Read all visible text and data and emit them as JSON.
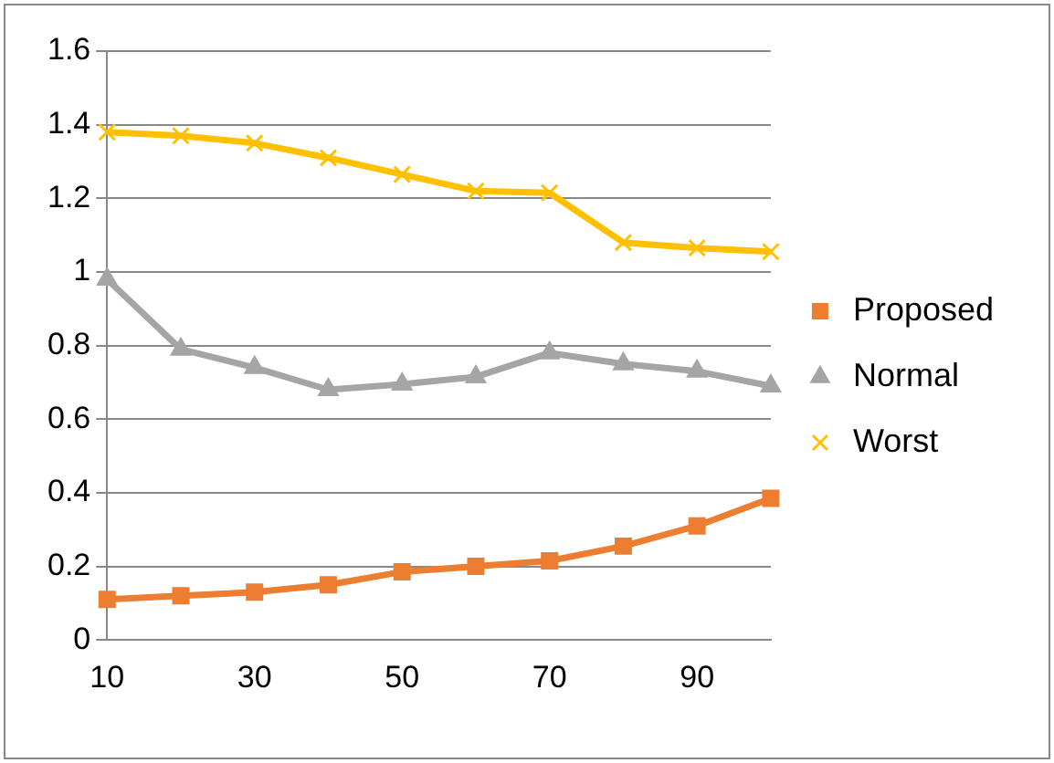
{
  "chart_data": {
    "type": "line",
    "categories": [
      "10",
      null,
      "30",
      null,
      "50",
      null,
      "70",
      null,
      "90",
      null
    ],
    "series": [
      {
        "name": "Proposed",
        "color": "#ed7d31",
        "marker": "square",
        "values": [
          0.11,
          0.12,
          0.13,
          0.15,
          0.185,
          0.2,
          0.215,
          0.255,
          0.31,
          0.385
        ]
      },
      {
        "name": "Normal",
        "color": "#a5a5a5",
        "marker": "triangle",
        "values": [
          0.98,
          0.79,
          0.74,
          0.68,
          0.695,
          0.715,
          0.78,
          0.75,
          0.73,
          0.69
        ]
      },
      {
        "name": "Worst",
        "color": "#ffc000",
        "marker": "cross",
        "values": [
          1.38,
          1.37,
          1.35,
          1.31,
          1.265,
          1.22,
          1.215,
          1.08,
          1.065,
          1.055
        ]
      }
    ],
    "ylim": [
      0,
      1.6
    ],
    "yticks": [
      0,
      0.2,
      0.4,
      0.6,
      0.8,
      1,
      1.2,
      1.4,
      1.6
    ],
    "grid": "y",
    "legend": "right"
  }
}
